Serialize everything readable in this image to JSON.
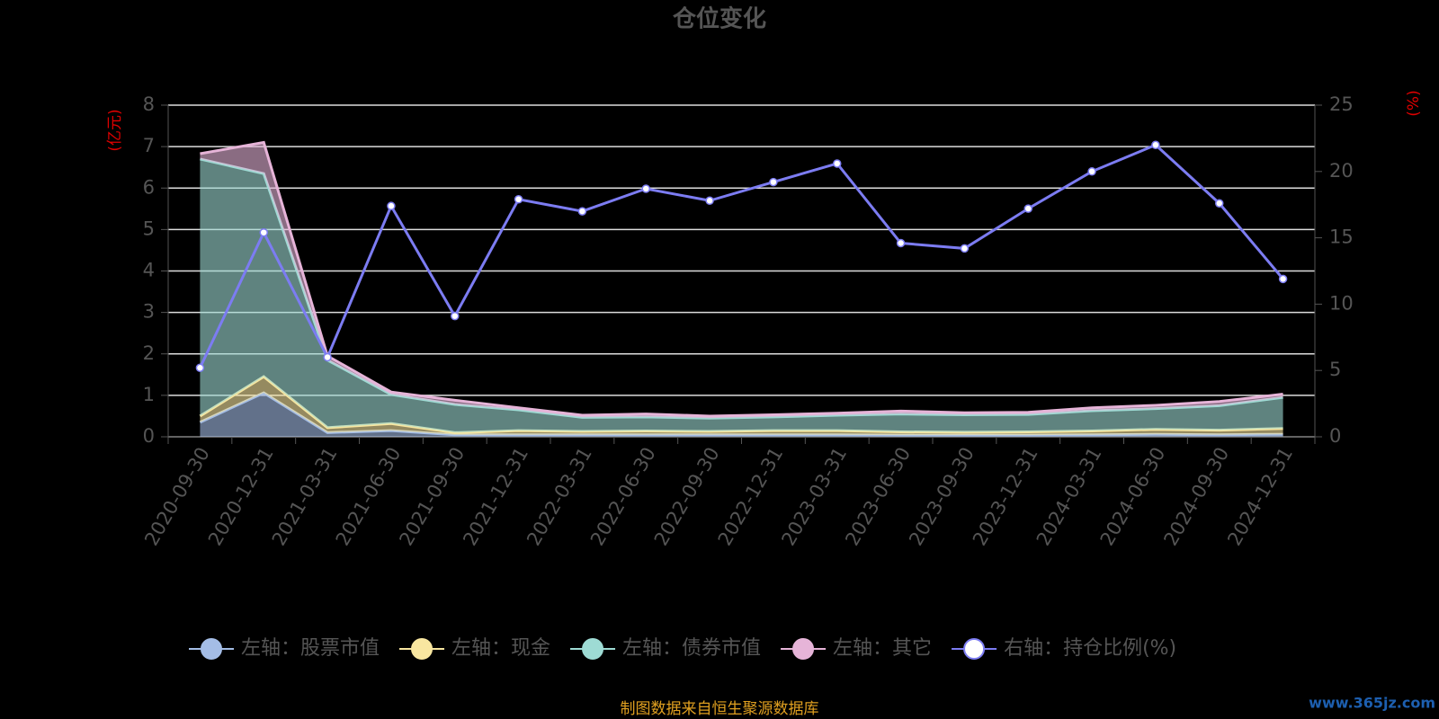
{
  "chart_data": {
    "type": "area",
    "title": "仓位变化",
    "y_axis_label": "(亿元)",
    "y2_axis_label": "(%)",
    "categories": [
      "2020-09-30",
      "2020-12-31",
      "2021-03-31",
      "2021-06-30",
      "2021-09-30",
      "2021-12-31",
      "2022-03-31",
      "2022-06-30",
      "2022-09-30",
      "2022-12-31",
      "2023-03-31",
      "2023-06-30",
      "2023-09-30",
      "2023-12-31",
      "2024-03-31",
      "2024-06-30",
      "2024-09-30",
      "2024-12-31"
    ],
    "ylim": [
      0,
      8
    ],
    "yticks": [
      0,
      1,
      2,
      3,
      4,
      5,
      6,
      7,
      8
    ],
    "y2lim": [
      0,
      25
    ],
    "y2ticks": [
      0,
      5,
      10,
      15,
      20,
      25
    ],
    "grid": true,
    "legend": "bottom",
    "stacked": true,
    "series": [
      {
        "name": "左轴：股票市值",
        "color": "#a4bde6",
        "values": [
          0.35,
          1.06,
          0.1,
          0.15,
          0.05,
          0.05,
          0.05,
          0.05,
          0.05,
          0.05,
          0.05,
          0.04,
          0.04,
          0.04,
          0.05,
          0.06,
          0.05,
          0.06
        ]
      },
      {
        "name": "左轴：现金",
        "color": "#f8e6a0",
        "values": [
          0.15,
          0.39,
          0.12,
          0.17,
          0.05,
          0.1,
          0.08,
          0.09,
          0.08,
          0.1,
          0.1,
          0.08,
          0.07,
          0.08,
          0.09,
          0.12,
          0.11,
          0.14
        ]
      },
      {
        "name": "左轴：债券市值",
        "color": "#9edbd4",
        "values": [
          6.2,
          4.9,
          1.63,
          0.7,
          0.68,
          0.5,
          0.34,
          0.34,
          0.32,
          0.33,
          0.37,
          0.43,
          0.42,
          0.42,
          0.49,
          0.5,
          0.59,
          0.75
        ]
      },
      {
        "name": "左轴：其它",
        "color": "#e6b4d8",
        "values": [
          0.13,
          0.75,
          0.1,
          0.06,
          0.1,
          0.05,
          0.05,
          0.07,
          0.05,
          0.05,
          0.05,
          0.07,
          0.05,
          0.05,
          0.07,
          0.08,
          0.1,
          0.08
        ]
      },
      {
        "name": "右轴：持仓比例(%)",
        "color": "#7c7cf2",
        "type": "line",
        "axis": "y2",
        "values": [
          5.2,
          15.4,
          6.0,
          17.4,
          9.1,
          17.9,
          17.0,
          18.7,
          17.8,
          19.2,
          20.6,
          14.6,
          14.2,
          17.2,
          20.0,
          22.0,
          17.6,
          11.9
        ]
      }
    ],
    "source": "制图数据来自恒生聚源数据库",
    "watermark": "www.365jz.com"
  }
}
